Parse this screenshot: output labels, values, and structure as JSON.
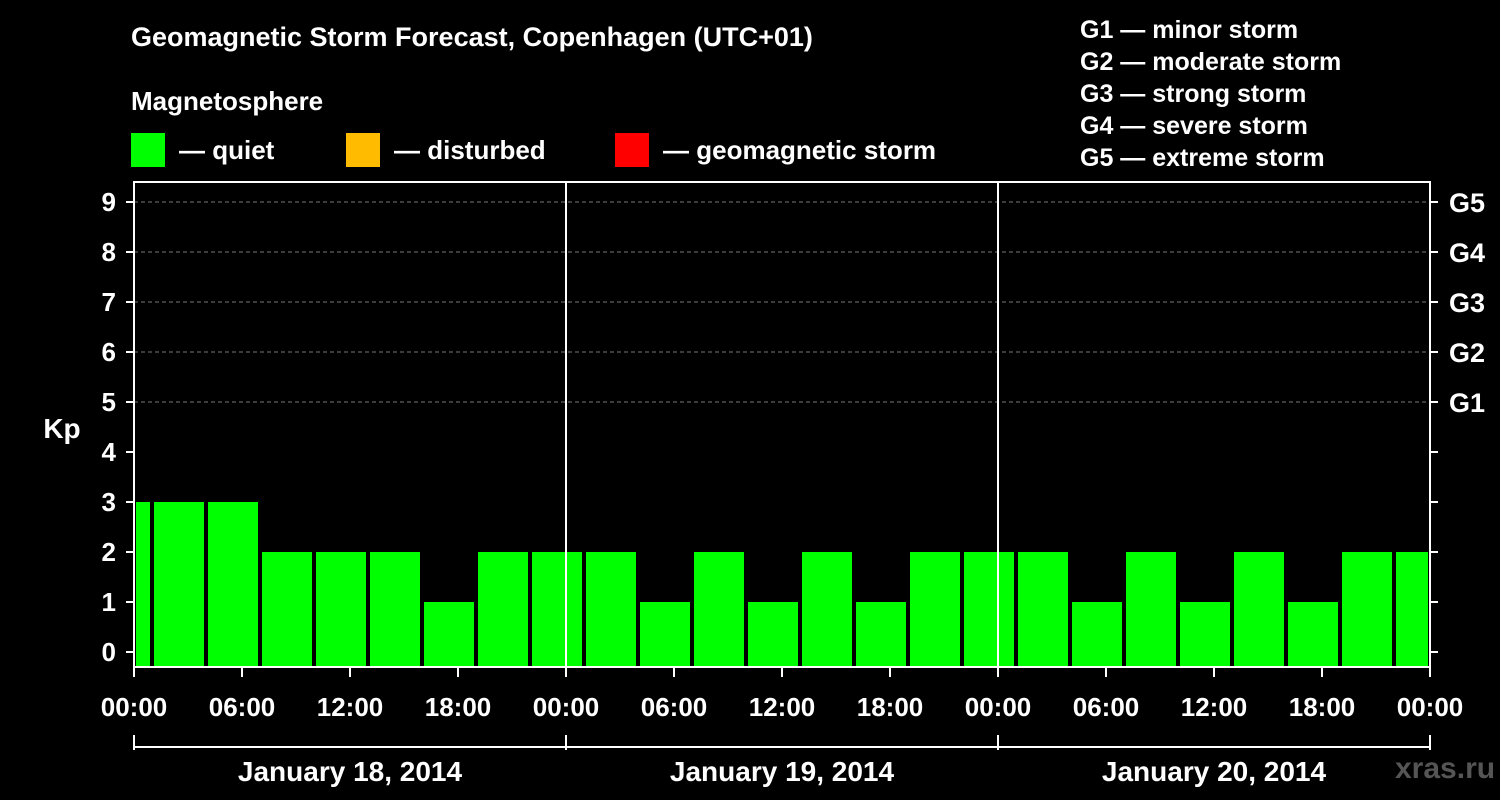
{
  "header": {
    "title": "Geomagnetic Storm Forecast, Copenhagen (UTC+01)",
    "section_label": "Magnetosphere"
  },
  "legend": [
    {
      "label": "— quiet",
      "color": "#00ff00"
    },
    {
      "label": "— disturbed",
      "color": "#ffbb00"
    },
    {
      "label": "— geomagnetic storm",
      "color": "#ff0000"
    }
  ],
  "g_scale": [
    "G1 — minor storm",
    "G2 — moderate storm",
    "G3 — strong storm",
    "G4 — severe storm",
    "G5 — extreme storm"
  ],
  "watermark": "xras.ru",
  "chart_data": {
    "type": "bar",
    "title": "Geomagnetic Storm Forecast, Copenhagen (UTC+01)",
    "ylabel": "Kp",
    "ylim": [
      0,
      9
    ],
    "yticks": [
      "0",
      "1",
      "2",
      "3",
      "4",
      "5",
      "6",
      "7",
      "8",
      "9"
    ],
    "right_axis": [
      {
        "kp": 5,
        "label": "G1"
      },
      {
        "kp": 6,
        "label": "G2"
      },
      {
        "kp": 7,
        "label": "G3"
      },
      {
        "kp": 8,
        "label": "G4"
      },
      {
        "kp": 9,
        "label": "G5"
      }
    ],
    "grid": "dashed horizontal at Kp 5-9",
    "x_hours_range": [
      0,
      72
    ],
    "xticks": [
      "00:00",
      "06:00",
      "12:00",
      "18:00",
      "00:00",
      "06:00",
      "12:00",
      "18:00",
      "00:00",
      "06:00",
      "12:00",
      "18:00",
      "00:00"
    ],
    "dates": [
      "January 18, 2014",
      "January 19, 2014",
      "January 20, 2014"
    ],
    "bars": [
      {
        "start": 0,
        "end": 1,
        "kp": 3
      },
      {
        "start": 1,
        "end": 4,
        "kp": 3
      },
      {
        "start": 4,
        "end": 7,
        "kp": 3
      },
      {
        "start": 7,
        "end": 10,
        "kp": 2
      },
      {
        "start": 10,
        "end": 13,
        "kp": 2
      },
      {
        "start": 13,
        "end": 16,
        "kp": 2
      },
      {
        "start": 16,
        "end": 19,
        "kp": 1
      },
      {
        "start": 19,
        "end": 22,
        "kp": 2
      },
      {
        "start": 22,
        "end": 25,
        "kp": 2
      },
      {
        "start": 25,
        "end": 28,
        "kp": 2
      },
      {
        "start": 28,
        "end": 31,
        "kp": 1
      },
      {
        "start": 31,
        "end": 34,
        "kp": 2
      },
      {
        "start": 34,
        "end": 37,
        "kp": 1
      },
      {
        "start": 37,
        "end": 40,
        "kp": 2
      },
      {
        "start": 40,
        "end": 43,
        "kp": 1
      },
      {
        "start": 43,
        "end": 46,
        "kp": 2
      },
      {
        "start": 46,
        "end": 49,
        "kp": 2
      },
      {
        "start": 49,
        "end": 52,
        "kp": 2
      },
      {
        "start": 52,
        "end": 55,
        "kp": 1
      },
      {
        "start": 55,
        "end": 58,
        "kp": 2
      },
      {
        "start": 58,
        "end": 61,
        "kp": 1
      },
      {
        "start": 61,
        "end": 64,
        "kp": 2
      },
      {
        "start": 64,
        "end": 67,
        "kp": 1
      },
      {
        "start": 67,
        "end": 70,
        "kp": 2
      },
      {
        "start": 70,
        "end": 72,
        "kp": 2
      }
    ],
    "bar_color": "#00ff00"
  }
}
